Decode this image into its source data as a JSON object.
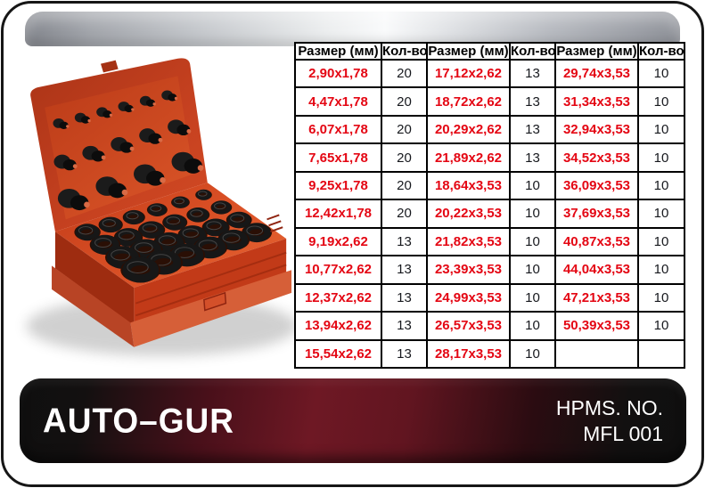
{
  "table": {
    "column_headers": [
      "Размер (мм)",
      "Кол-во",
      "Размер (мм)",
      "Кол-во",
      "Размер (мм)",
      "Кол-во"
    ],
    "rows": [
      [
        "2,90x1,78",
        "20",
        "17,12x2,62",
        "13",
        "29,74x3,53",
        "10"
      ],
      [
        "4,47x1,78",
        "20",
        "18,72x2,62",
        "13",
        "31,34x3,53",
        "10"
      ],
      [
        "6,07x1,78",
        "20",
        "20,29x2,62",
        "13",
        "32,94x3,53",
        "10"
      ],
      [
        "7,65x1,78",
        "20",
        "21,89x2,62",
        "13",
        "34,52x3,53",
        "10"
      ],
      [
        "9,25x1,78",
        "20",
        "18,64x3,53",
        "10",
        "36,09x3,53",
        "10"
      ],
      [
        "12,42x1,78",
        "20",
        "20,22x3,53",
        "10",
        "37,69x3,53",
        "10"
      ],
      [
        "9,19x2,62",
        "13",
        "21,82x3,53",
        "10",
        "40,87x3,53",
        "10"
      ],
      [
        "10,77x2,62",
        "13",
        "23,39x3,53",
        "10",
        "44,04x3,53",
        "10"
      ],
      [
        "12,37x2,62",
        "13",
        "24,99x3,53",
        "10",
        "47,21x3,53",
        "10"
      ],
      [
        "13,94x2,62",
        "13",
        "26,57x3,53",
        "10",
        "50,39x3,53",
        "10"
      ],
      [
        "15,54x2,62",
        "13",
        "28,17x3,53",
        "10",
        "",
        ""
      ]
    ]
  },
  "footer": {
    "brand": "AUTO–GUR",
    "part_label_line1": "HPMS. NO.",
    "part_label_line2": "MFL 001"
  },
  "product_photo": {
    "subject": "red-oring-assortment-box-open-kit",
    "box_color": "#c8431d",
    "ring_color": "#1a1a1a"
  },
  "colors": {
    "size_text_red": "#e40613",
    "qty_text": "#16181d",
    "table_border": "#000000",
    "banner_silver": "#b9bcc1",
    "footer_maroon": "#6e1824",
    "footer_black": "#0f0f0f",
    "frame_border": "#161616"
  }
}
